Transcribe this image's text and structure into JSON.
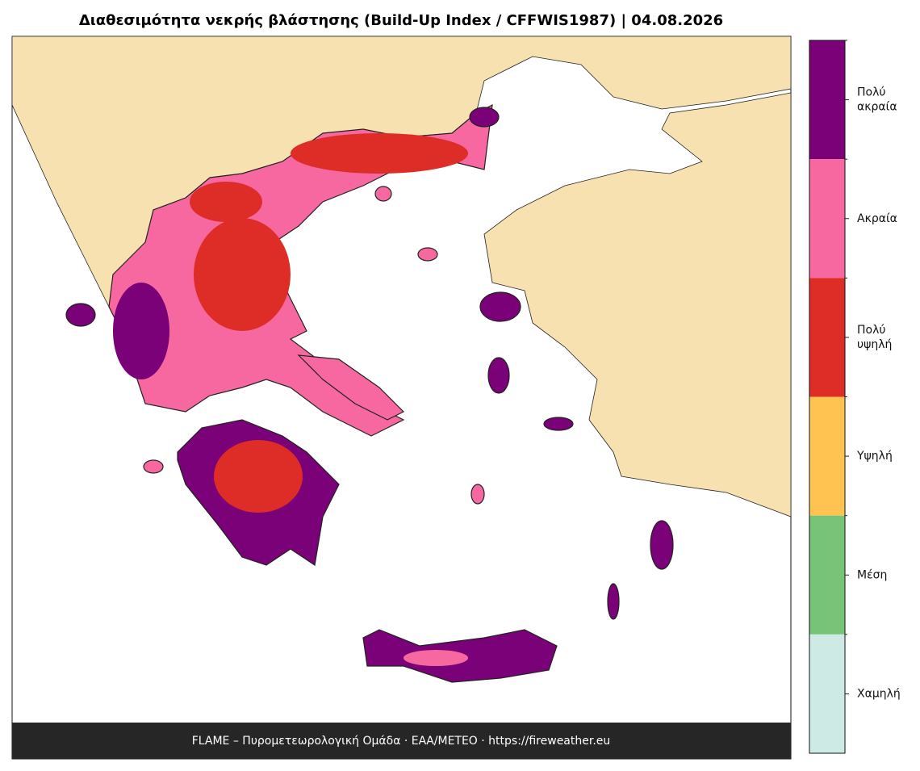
{
  "title": "Διαθεσιμότητα νεκρής βλάστησης (Build-Up Index / CFFWIS1987)  |  04.08.2026",
  "footer": "FLAME – Πυρομετεωρολογική Ομάδα · ΕΑΑ/METEO · https://fireweather.eu",
  "legend": [
    {
      "label_lines": [
        "Πολύ",
        "ακραία"
      ],
      "color": "#7a0177"
    },
    {
      "label_lines": [
        "Ακραία"
      ],
      "color": "#f768a1"
    },
    {
      "label_lines": [
        "Πολύ",
        "υψηλή"
      ],
      "color": "#de2d26"
    },
    {
      "label_lines": [
        "Υψηλή"
      ],
      "color": "#fec350"
    },
    {
      "label_lines": [
        "Μέση"
      ],
      "color": "#77c479"
    },
    {
      "label_lines": [
        "Χαμηλή"
      ],
      "color": "#cdebe4"
    }
  ]
}
